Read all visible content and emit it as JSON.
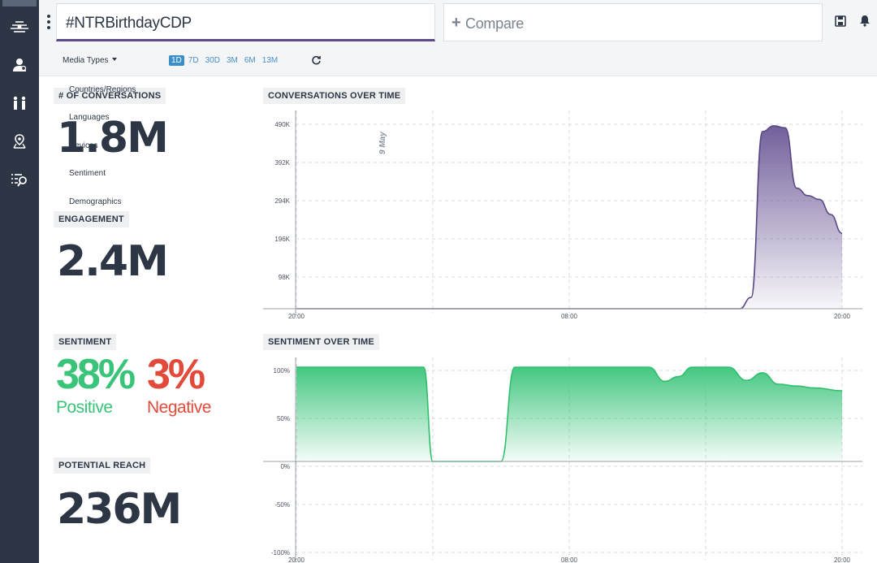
{
  "header": {
    "query": "#NTRBirthdayCDP",
    "compare_label": "Compare",
    "media_types_label": "Media Types",
    "ranges": [
      "1D",
      "7D",
      "30D",
      "3M",
      "6M",
      "13M"
    ],
    "active_range": "1D"
  },
  "menu": {
    "items": [
      "Countries/Regions",
      "Languages",
      "Devices",
      "Sentiment",
      "Demographics"
    ]
  },
  "metrics": {
    "conversations_label": "# OF CONVERSATIONS",
    "conversations_value": "1.8M",
    "engagement_label": "ENGAGEMENT",
    "engagement_value": "2.4M",
    "sentiment_label": "SENTIMENT",
    "positive_value": "38%",
    "positive_label": "Positive",
    "negative_value": "3%",
    "negative_label": "Negative",
    "reach_label": "POTENTIAL REACH",
    "reach_value": "236M"
  },
  "colors": {
    "purple": "#6b5796",
    "green": "#3ac47a",
    "negative": "#e24b3b",
    "sidebar": "#2c3645"
  },
  "chart_data": [
    {
      "type": "area",
      "title": "CONVERSATIONS OVER TIME",
      "annotation": "9 May",
      "x_tick_labels": [
        "20:00",
        "08:00",
        "20:00"
      ],
      "y_tick_labels": [
        "490K",
        "392K",
        "294K",
        "196K",
        "98K"
      ],
      "ylim": [
        0,
        500000
      ],
      "grid": true,
      "x_hours": [
        0,
        2,
        4,
        6,
        8,
        10,
        12,
        16,
        18,
        19,
        19.5,
        20,
        20.5,
        21,
        21.5,
        22,
        22.5,
        23,
        23.5,
        24
      ],
      "values": [
        0,
        0,
        0,
        0,
        0,
        0,
        0,
        0,
        0,
        0,
        0,
        30000,
        470000,
        485000,
        480000,
        320000,
        300000,
        290000,
        250000,
        200000
      ]
    },
    {
      "type": "area",
      "title": "SENTIMENT OVER TIME",
      "x_tick_labels": [
        "20:00",
        "08:00",
        "20:00"
      ],
      "y_tick_labels": [
        "100%",
        "50%",
        "0%",
        "-50%",
        "-100%"
      ],
      "ylim": [
        -100,
        100
      ],
      "grid": true,
      "x_hours": [
        0,
        4,
        5.6,
        6,
        9,
        9.6,
        10,
        15.5,
        16.2,
        16.8,
        17.4,
        18,
        19,
        19.8,
        20.5,
        21.2,
        22,
        22.8,
        24
      ],
      "values": [
        100,
        100,
        100,
        0,
        0,
        100,
        100,
        100,
        85,
        90,
        100,
        100,
        100,
        86,
        94,
        82,
        80,
        78,
        75
      ]
    }
  ]
}
